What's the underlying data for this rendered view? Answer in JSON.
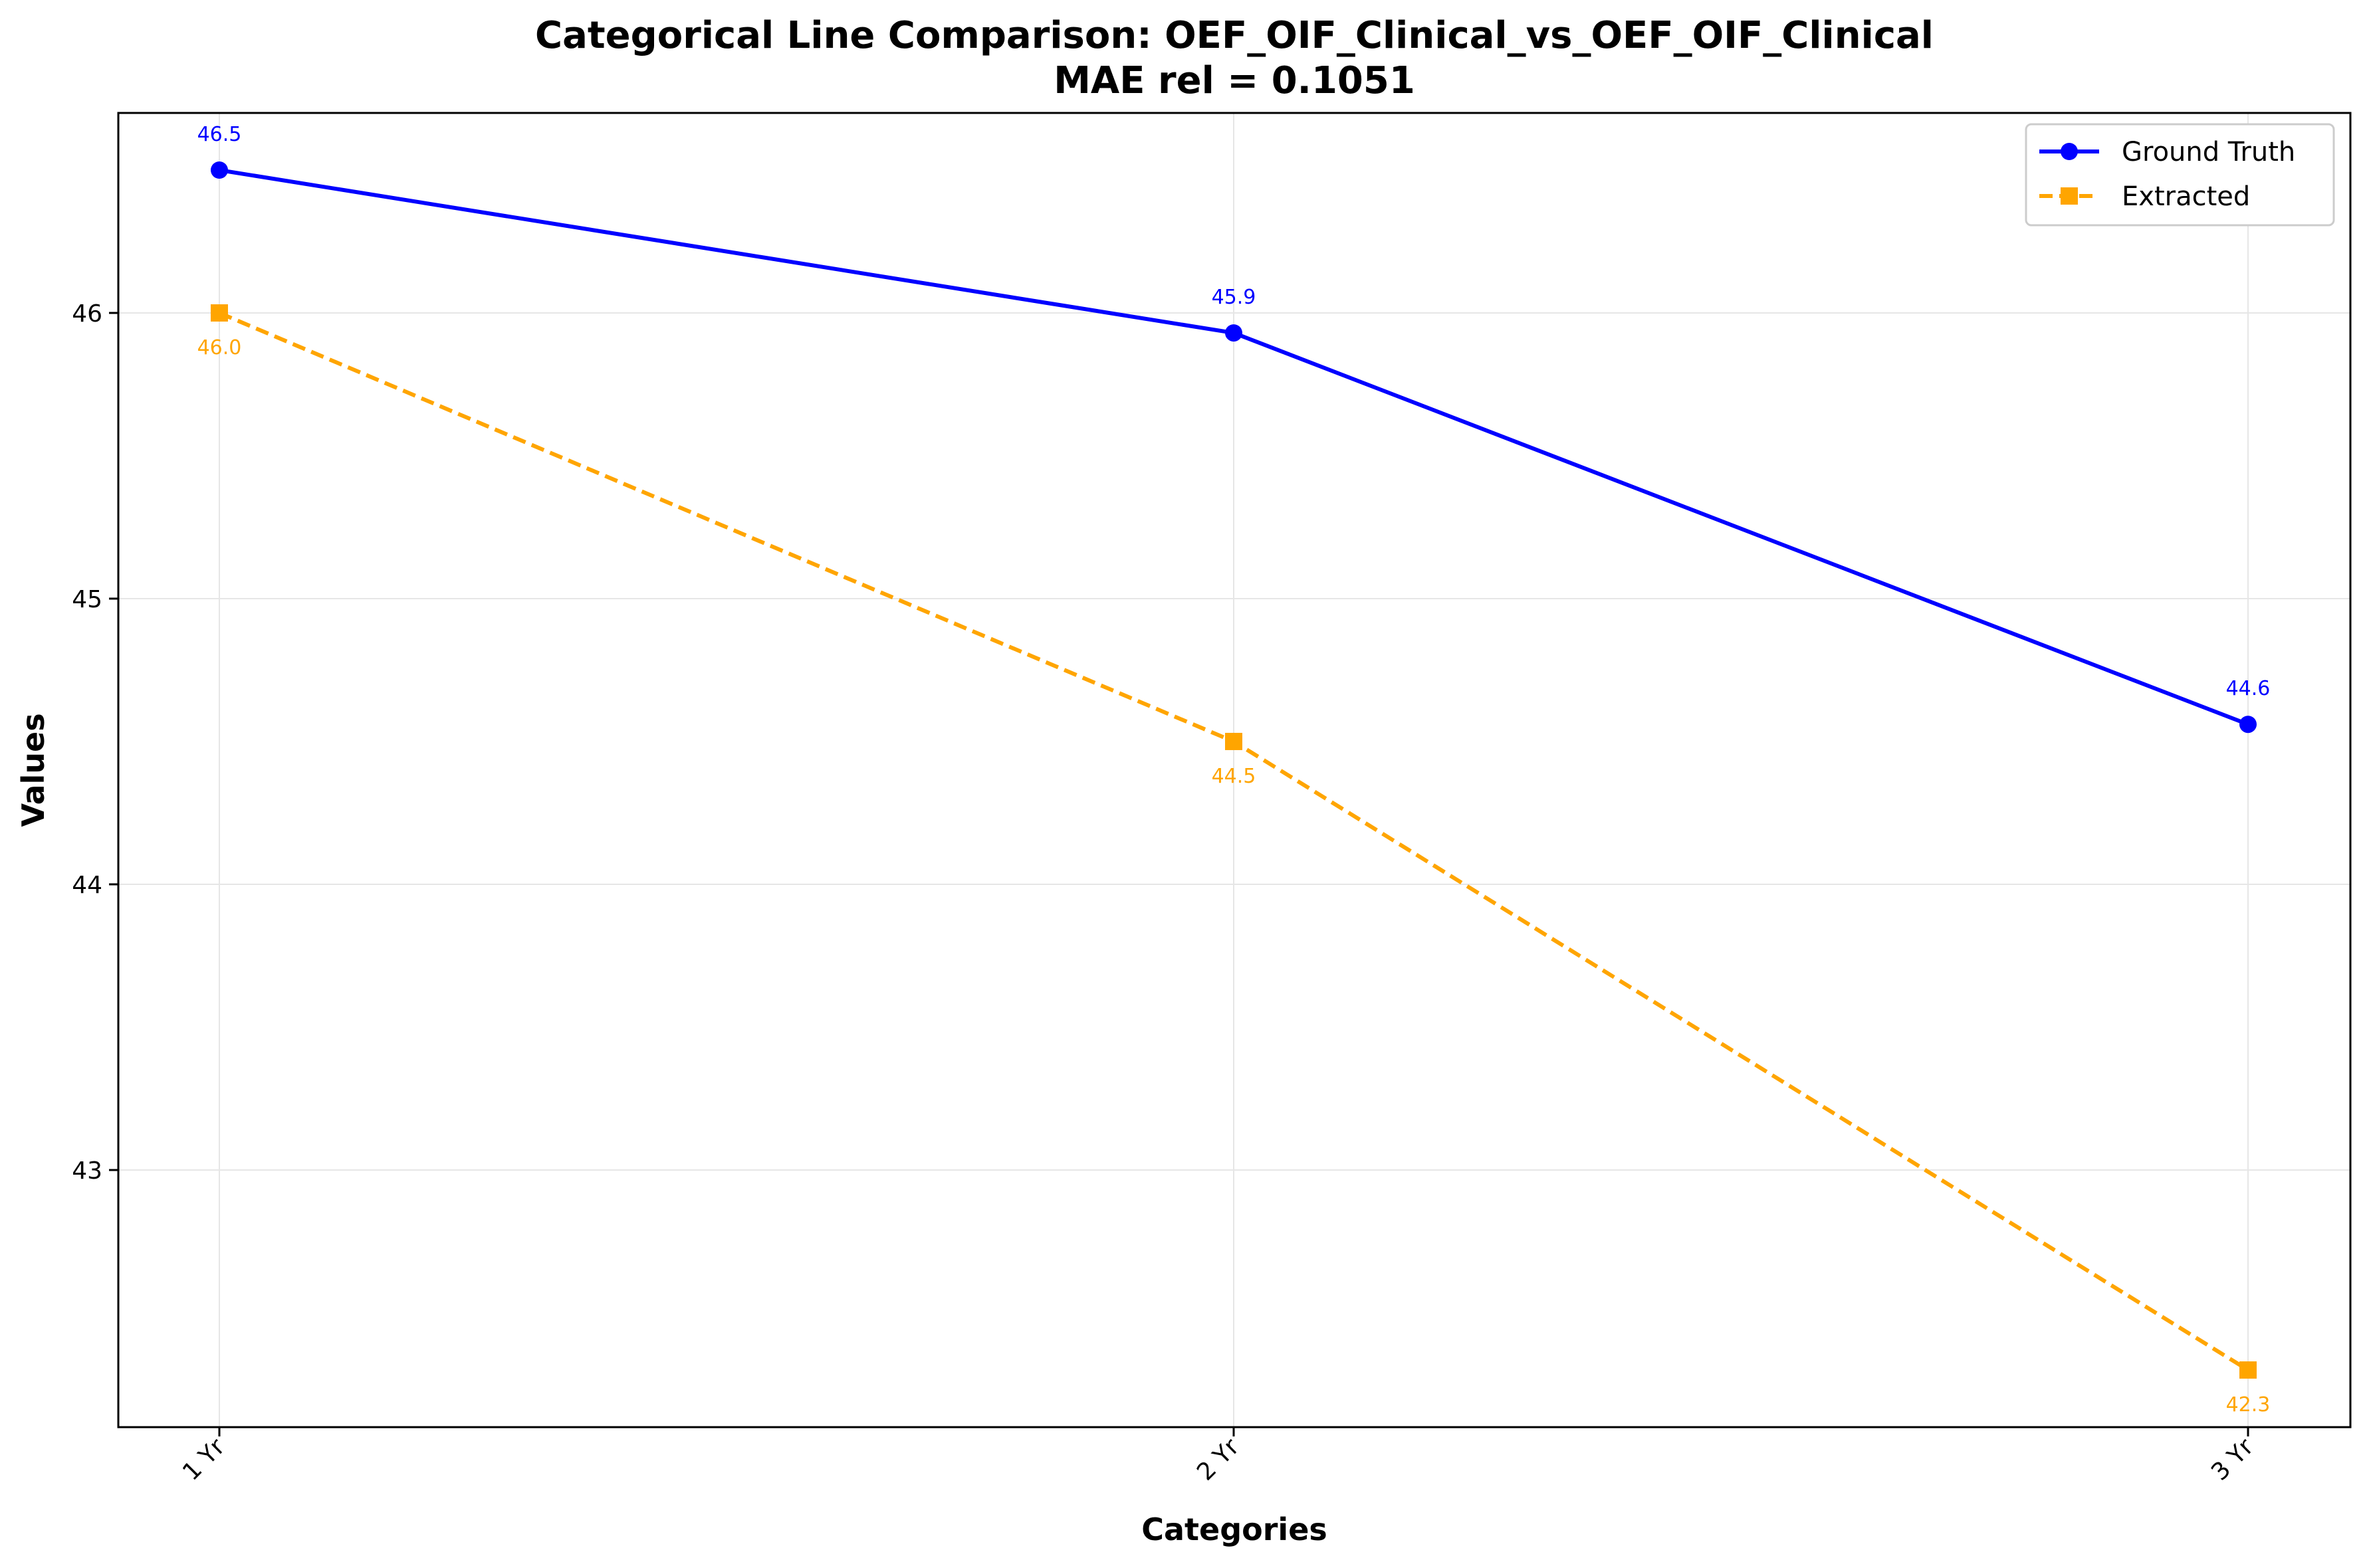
{
  "chart_data": {
    "type": "line",
    "title": "Categorical Line Comparison: OEF_OIF_Clinical_vs_OEF_OIF_Clinical",
    "subtitle": "MAE rel = 0.1051",
    "xlabel": "Categories",
    "ylabel": "Values",
    "categories": [
      "1 Yr",
      "2 Yr",
      "3 Yr"
    ],
    "ylim": [
      42.1,
      46.7
    ],
    "yticks": [
      43,
      44,
      45,
      46
    ],
    "grid": true,
    "legend_position": "top-right",
    "series": [
      {
        "name": "Ground Truth",
        "values": [
          46.5,
          45.93,
          44.56
        ],
        "labels": [
          "46.5",
          "45.9",
          "44.6"
        ],
        "color": "#0000ff",
        "line_style": "solid",
        "marker": "circle",
        "label_position": "above"
      },
      {
        "name": "Extracted",
        "values": [
          46.0,
          44.5,
          42.3
        ],
        "labels": [
          "46.0",
          "44.5",
          "42.3"
        ],
        "color": "#ffa500",
        "line_style": "dashed",
        "marker": "square",
        "label_position": "below"
      }
    ]
  }
}
